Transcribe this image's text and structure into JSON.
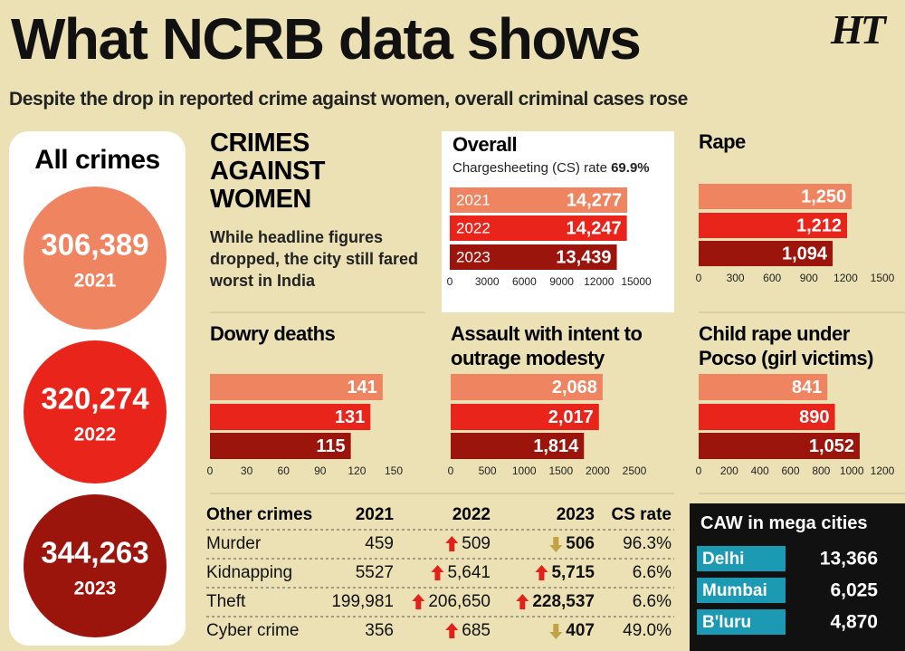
{
  "header": {
    "title": "What NCRB data shows",
    "subtitle": "Despite the drop in reported crime against women, overall criminal cases rose",
    "logo": "HT"
  },
  "all_crimes": {
    "title": "All crimes",
    "items": [
      {
        "value": "306,389",
        "year": "2021",
        "color": "#ef8461"
      },
      {
        "value": "320,274",
        "year": "2022",
        "color": "#e8241b"
      },
      {
        "value": "344,263",
        "year": "2023",
        "color": "#9c150d"
      }
    ]
  },
  "women_intro": {
    "heading": "CRIMES AGAINST WOMEN",
    "text": "While headline figures dropped, the city still fared worst in India"
  },
  "chart_data": [
    {
      "type": "bar",
      "orientation": "horizontal",
      "title": "Overall",
      "subtitle": "Chargesheeting (CS) rate",
      "cs_rate": "69.9%",
      "categories": [
        "2021",
        "2022",
        "2023"
      ],
      "values": [
        14277,
        14247,
        13439
      ],
      "value_labels": [
        "14,277",
        "14,247",
        "13,439"
      ],
      "colors": [
        "#ef8461",
        "#e8241b",
        "#9c150d"
      ],
      "xlim": [
        0,
        15000
      ],
      "xticks": [
        0,
        3000,
        6000,
        9000,
        12000,
        15000
      ]
    },
    {
      "type": "bar",
      "orientation": "horizontal",
      "title": "Rape",
      "values": [
        1250,
        1212,
        1094
      ],
      "value_labels": [
        "1,250",
        "1,212",
        "1,094"
      ],
      "colors": [
        "#ef8461",
        "#e8241b",
        "#9c150d"
      ],
      "xlim": [
        0,
        1500
      ],
      "xticks": [
        0,
        300,
        600,
        900,
        1200,
        1500
      ]
    },
    {
      "type": "bar",
      "orientation": "horizontal",
      "title": "Dowry deaths",
      "values": [
        141,
        131,
        115
      ],
      "colors": [
        "#ef8461",
        "#e8241b",
        "#9c150d"
      ],
      "xlim": [
        0,
        150
      ],
      "xticks": [
        0,
        30,
        60,
        90,
        120,
        150
      ]
    },
    {
      "type": "bar",
      "orientation": "horizontal",
      "title": "Assault with intent to outrage modesty",
      "values": [
        2068,
        2017,
        1814
      ],
      "value_labels": [
        "2,068",
        "2,017",
        "1,814"
      ],
      "colors": [
        "#ef8461",
        "#e8241b",
        "#9c150d"
      ],
      "xlim": [
        0,
        2500
      ],
      "xticks": [
        0,
        500,
        1000,
        1500,
        2000,
        2500
      ]
    },
    {
      "type": "bar",
      "orientation": "horizontal",
      "title": "Child rape under Pocso (girl victims)",
      "values": [
        841,
        890,
        1052
      ],
      "value_labels": [
        "841",
        "890",
        "1,052"
      ],
      "colors": [
        "#ef8461",
        "#e8241b",
        "#9c150d"
      ],
      "xlim": [
        0,
        1200
      ],
      "xticks": [
        0,
        200,
        400,
        600,
        800,
        1000,
        1200
      ]
    }
  ],
  "other_crimes": {
    "header": [
      "Other crimes",
      "2021",
      "2022",
      "2023",
      "CS rate"
    ],
    "rows": [
      [
        "Murder",
        "459",
        "509",
        "506",
        "96.3%"
      ],
      [
        "Kidnapping",
        "5527",
        "5,641",
        "5,715",
        "6.6%"
      ],
      [
        "Theft",
        "199,981",
        "206,650",
        "228,537",
        "6.6%"
      ],
      [
        "Cyber crime",
        "356",
        "685",
        "407",
        "49.0%"
      ]
    ]
  },
  "mega_cities": {
    "title": "CAW in mega cities",
    "rows": [
      [
        "Delhi",
        "13,366"
      ],
      [
        "Mumbai",
        "6,025"
      ],
      [
        "B'luru",
        "4,870"
      ]
    ]
  }
}
